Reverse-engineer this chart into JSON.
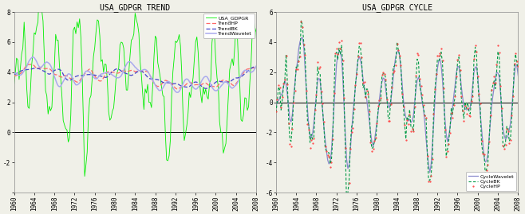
{
  "title1": "USA_GDPGR TREND",
  "title2": "USA_GDPGR CYCLE",
  "ylim1": [
    -4,
    8
  ],
  "ylim2": [
    -6,
    6
  ],
  "yticks1": [
    -4,
    -2,
    0,
    2,
    4,
    6,
    8
  ],
  "yticks2": [
    -6,
    -4,
    -2,
    0,
    2,
    4,
    6
  ],
  "xticks": [
    1960,
    1964,
    1968,
    1972,
    1976,
    1980,
    1984,
    1988,
    1992,
    1996,
    2000,
    2004,
    2008
  ],
  "legend1": [
    "USA_GDPGR",
    "TrendHP",
    "TrendBK",
    "TrendWavelet"
  ],
  "legend2": [
    "CycleHP",
    "CycleBK",
    "CycleWavelet"
  ],
  "color_gdp": "#00ee00",
  "color_trendHP": "#ff6666",
  "color_trendBK": "#4444cc",
  "color_trendWavelet": "#aaaaee",
  "color_cycleHP": "#ff4444",
  "color_cycleBK": "#009944",
  "color_cycleWavelet": "#8888cc",
  "bg_color": "#f0f0e8",
  "title_fontsize": 7,
  "tick_fontsize": 5.5
}
